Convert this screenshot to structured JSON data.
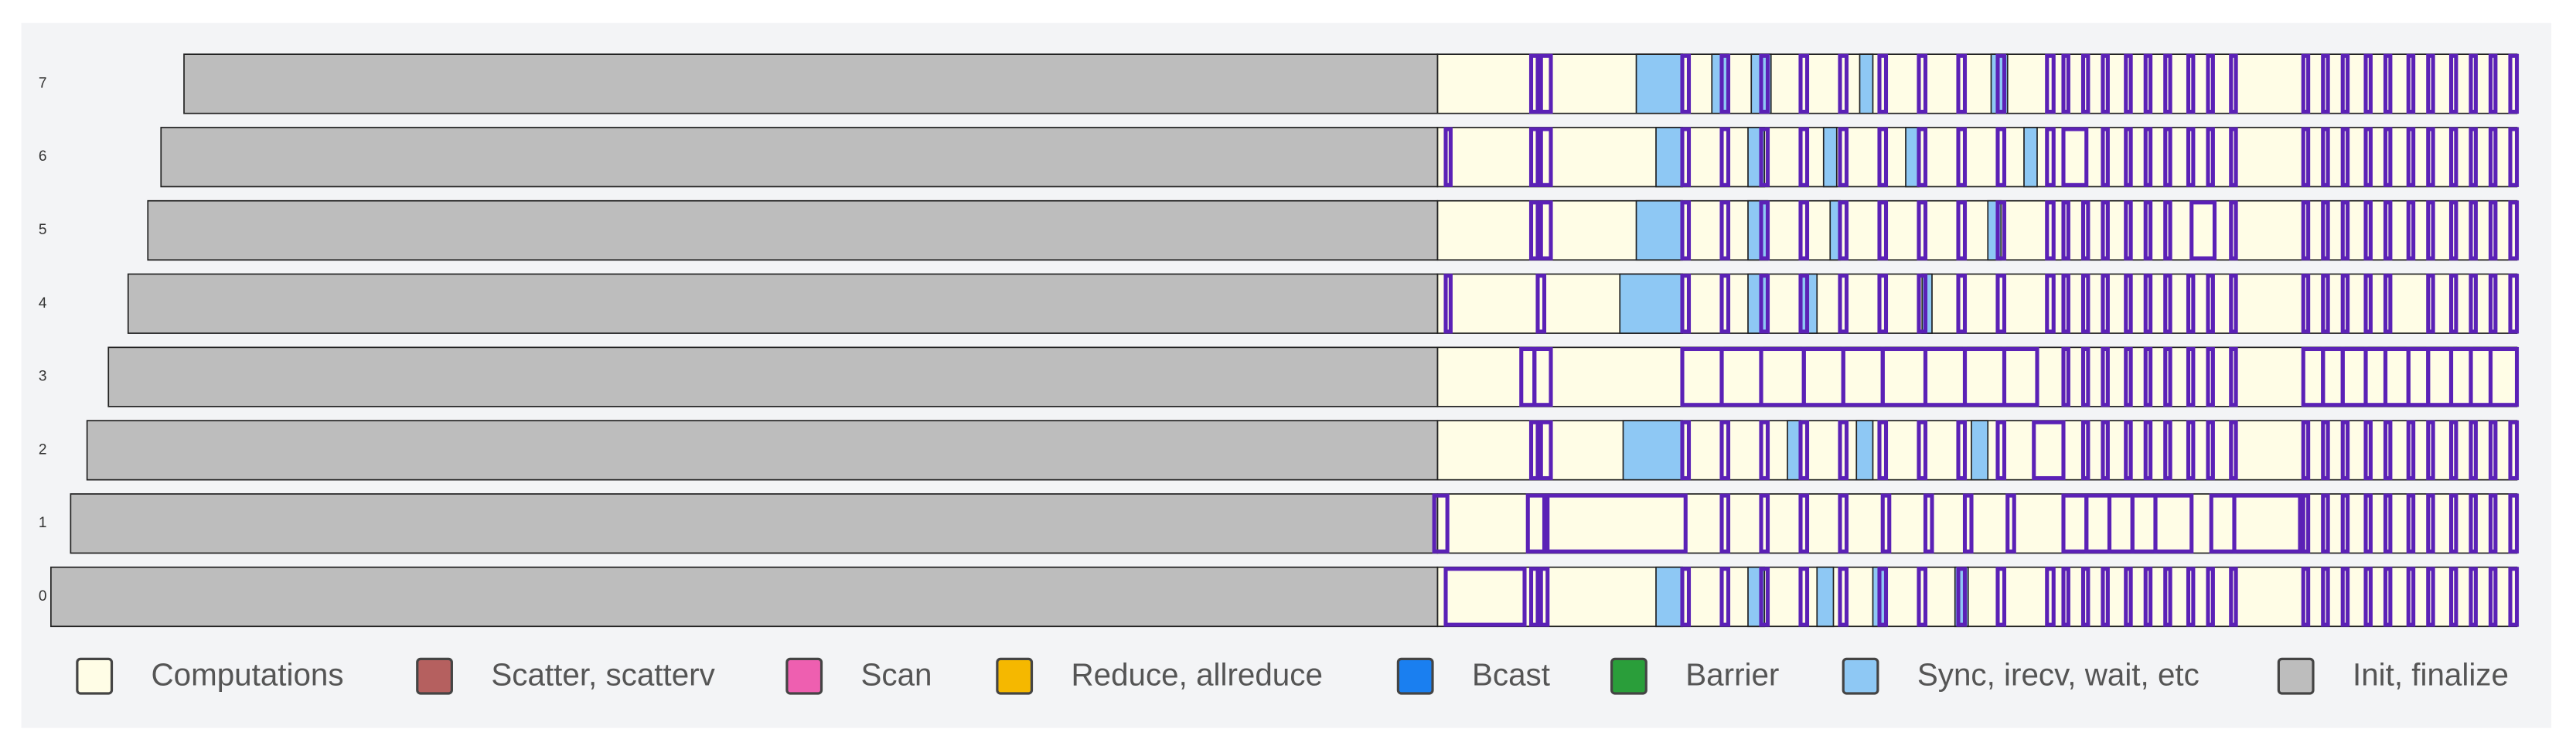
{
  "chart_data": {
    "type": "timeline",
    "rows": [
      "0",
      "1",
      "2",
      "3",
      "4",
      "5",
      "6",
      "7"
    ],
    "xlim": [
      20,
      1540
    ],
    "series": [
      {
        "name": "Computations",
        "color": "#fffde6",
        "intervals": [
          [
            0,
            875,
            1532
          ],
          [
            1,
            875,
            1532
          ],
          [
            2,
            875,
            1532
          ],
          [
            3,
            875,
            1532
          ],
          [
            4,
            875,
            1532
          ],
          [
            5,
            875,
            1532
          ],
          [
            6,
            875,
            1532
          ],
          [
            7,
            875,
            1532
          ]
        ]
      },
      {
        "name": "Scatter, scatterv",
        "color": "#b5605f",
        "intervals": []
      },
      {
        "name": "Scan",
        "color": "#ee5fb0",
        "intervals": []
      },
      {
        "name": "Reduce, allreduce",
        "color": "#f5b800",
        "intervals": []
      },
      {
        "name": "Bcast",
        "color": "#1a7ff0",
        "intervals": []
      },
      {
        "name": "Barrier",
        "color": "#2a9e3a",
        "intervals": []
      },
      {
        "name": "Sync, irecv, wait, etc",
        "color": "#8ec8f4",
        "intervals": [
          [
            7,
            996,
            1024
          ],
          [
            7,
            1042,
            1052
          ],
          [
            7,
            1066,
            1078
          ],
          [
            7,
            1132,
            1140
          ],
          [
            7,
            1212,
            1222
          ],
          [
            6,
            1008,
            1024
          ],
          [
            6,
            1064,
            1074
          ],
          [
            6,
            1110,
            1118
          ],
          [
            6,
            1160,
            1168
          ],
          [
            6,
            1232,
            1240
          ],
          [
            5,
            996,
            1024
          ],
          [
            5,
            1064,
            1076
          ],
          [
            5,
            1114,
            1120
          ],
          [
            5,
            1210,
            1218
          ],
          [
            4,
            986,
            1024
          ],
          [
            4,
            1064,
            1076
          ],
          [
            4,
            1096,
            1106
          ],
          [
            4,
            1170,
            1176
          ],
          [
            2,
            988,
            1024
          ],
          [
            2,
            1088,
            1096
          ],
          [
            2,
            1130,
            1140
          ],
          [
            2,
            1200,
            1210
          ],
          [
            0,
            1008,
            1024
          ],
          [
            0,
            1064,
            1074
          ],
          [
            0,
            1106,
            1116
          ],
          [
            0,
            1140,
            1148
          ],
          [
            0,
            1190,
            1198
          ]
        ]
      },
      {
        "name": "Init, finalize",
        "color": "#bdbdbd",
        "intervals": [
          [
            0,
            31,
            875
          ],
          [
            1,
            43,
            875
          ],
          [
            2,
            53,
            875
          ],
          [
            3,
            66,
            875
          ],
          [
            4,
            78,
            875
          ],
          [
            5,
            90,
            875
          ],
          [
            6,
            98,
            875
          ],
          [
            7,
            112,
            875
          ]
        ]
      }
    ],
    "outline_color": "#5b21b6",
    "outlined": [
      [
        7,
        932,
        936
      ],
      [
        7,
        938,
        944
      ],
      [
        7,
        1024,
        1028
      ],
      [
        7,
        1048,
        1052
      ],
      [
        7,
        1072,
        1076
      ],
      [
        7,
        1096,
        1100
      ],
      [
        7,
        1120,
        1124
      ],
      [
        7,
        1144,
        1148
      ],
      [
        7,
        1168,
        1172
      ],
      [
        7,
        1192,
        1196
      ],
      [
        7,
        1216,
        1220
      ],
      [
        7,
        1246,
        1250
      ],
      [
        7,
        1256,
        1259
      ],
      [
        7,
        1268,
        1271
      ],
      [
        7,
        1280,
        1283
      ],
      [
        7,
        1294,
        1297
      ],
      [
        7,
        1306,
        1309
      ],
      [
        7,
        1318,
        1321
      ],
      [
        7,
        1332,
        1335
      ],
      [
        7,
        1344,
        1347
      ],
      [
        7,
        1358,
        1361
      ],
      [
        7,
        1402,
        1405
      ],
      [
        7,
        1414,
        1417
      ],
      [
        7,
        1426,
        1429
      ],
      [
        7,
        1440,
        1443
      ],
      [
        7,
        1452,
        1455
      ],
      [
        7,
        1466,
        1469
      ],
      [
        7,
        1478,
        1481
      ],
      [
        7,
        1492,
        1495
      ],
      [
        7,
        1504,
        1507
      ],
      [
        7,
        1516,
        1519
      ],
      [
        7,
        1528,
        1532
      ],
      [
        6,
        880,
        883
      ],
      [
        6,
        932,
        936
      ],
      [
        6,
        938,
        944
      ],
      [
        6,
        1024,
        1028
      ],
      [
        6,
        1048,
        1052
      ],
      [
        6,
        1072,
        1076
      ],
      [
        6,
        1096,
        1100
      ],
      [
        6,
        1120,
        1124
      ],
      [
        6,
        1144,
        1148
      ],
      [
        6,
        1168,
        1172
      ],
      [
        6,
        1192,
        1196
      ],
      [
        6,
        1216,
        1220
      ],
      [
        6,
        1246,
        1250
      ],
      [
        6,
        1256,
        1270
      ],
      [
        6,
        1280,
        1283
      ],
      [
        6,
        1294,
        1297
      ],
      [
        6,
        1306,
        1309
      ],
      [
        6,
        1318,
        1321
      ],
      [
        6,
        1332,
        1335
      ],
      [
        6,
        1344,
        1347
      ],
      [
        6,
        1358,
        1361
      ],
      [
        6,
        1402,
        1405
      ],
      [
        6,
        1414,
        1417
      ],
      [
        6,
        1426,
        1429
      ],
      [
        6,
        1440,
        1443
      ],
      [
        6,
        1452,
        1455
      ],
      [
        6,
        1466,
        1469
      ],
      [
        6,
        1478,
        1481
      ],
      [
        6,
        1492,
        1495
      ],
      [
        6,
        1504,
        1507
      ],
      [
        6,
        1516,
        1519
      ],
      [
        6,
        1528,
        1532
      ],
      [
        5,
        932,
        936
      ],
      [
        5,
        938,
        944
      ],
      [
        5,
        1024,
        1028
      ],
      [
        5,
        1048,
        1052
      ],
      [
        5,
        1072,
        1076
      ],
      [
        5,
        1096,
        1100
      ],
      [
        5,
        1120,
        1124
      ],
      [
        5,
        1144,
        1148
      ],
      [
        5,
        1168,
        1172
      ],
      [
        5,
        1192,
        1196
      ],
      [
        5,
        1216,
        1220
      ],
      [
        5,
        1246,
        1250
      ],
      [
        5,
        1256,
        1259
      ],
      [
        5,
        1268,
        1271
      ],
      [
        5,
        1280,
        1283
      ],
      [
        5,
        1294,
        1297
      ],
      [
        5,
        1306,
        1309
      ],
      [
        5,
        1318,
        1321
      ],
      [
        5,
        1334,
        1348
      ],
      [
        5,
        1358,
        1361
      ],
      [
        5,
        1402,
        1405
      ],
      [
        5,
        1414,
        1417
      ],
      [
        5,
        1426,
        1429
      ],
      [
        5,
        1440,
        1443
      ],
      [
        5,
        1452,
        1455
      ],
      [
        5,
        1466,
        1469
      ],
      [
        5,
        1478,
        1481
      ],
      [
        5,
        1492,
        1495
      ],
      [
        5,
        1504,
        1507
      ],
      [
        5,
        1516,
        1519
      ],
      [
        5,
        1528,
        1532
      ],
      [
        4,
        880,
        883
      ],
      [
        4,
        936,
        940
      ],
      [
        4,
        1024,
        1028
      ],
      [
        4,
        1048,
        1052
      ],
      [
        4,
        1072,
        1076
      ],
      [
        4,
        1096,
        1100
      ],
      [
        4,
        1120,
        1124
      ],
      [
        4,
        1144,
        1148
      ],
      [
        4,
        1168,
        1172
      ],
      [
        4,
        1192,
        1196
      ],
      [
        4,
        1216,
        1220
      ],
      [
        4,
        1246,
        1250
      ],
      [
        4,
        1256,
        1259
      ],
      [
        4,
        1268,
        1271
      ],
      [
        4,
        1280,
        1283
      ],
      [
        4,
        1294,
        1297
      ],
      [
        4,
        1306,
        1309
      ],
      [
        4,
        1318,
        1321
      ],
      [
        4,
        1332,
        1335
      ],
      [
        4,
        1344,
        1347
      ],
      [
        4,
        1358,
        1361
      ],
      [
        4,
        1402,
        1405
      ],
      [
        4,
        1414,
        1417
      ],
      [
        4,
        1426,
        1429
      ],
      [
        4,
        1440,
        1443
      ],
      [
        4,
        1452,
        1455
      ],
      [
        4,
        1478,
        1481
      ],
      [
        4,
        1492,
        1495
      ],
      [
        4,
        1504,
        1507
      ],
      [
        4,
        1516,
        1519
      ],
      [
        4,
        1528,
        1532
      ],
      [
        3,
        926,
        934
      ],
      [
        3,
        934,
        944
      ],
      [
        3,
        1024,
        1048
      ],
      [
        3,
        1048,
        1072
      ],
      [
        3,
        1072,
        1098
      ],
      [
        3,
        1098,
        1122
      ],
      [
        3,
        1122,
        1146
      ],
      [
        3,
        1146,
        1172
      ],
      [
        3,
        1172,
        1196
      ],
      [
        3,
        1196,
        1220
      ],
      [
        3,
        1220,
        1240
      ],
      [
        3,
        1256,
        1259
      ],
      [
        3,
        1268,
        1271
      ],
      [
        3,
        1280,
        1283
      ],
      [
        3,
        1294,
        1297
      ],
      [
        3,
        1306,
        1309
      ],
      [
        3,
        1318,
        1321
      ],
      [
        3,
        1332,
        1335
      ],
      [
        3,
        1344,
        1347
      ],
      [
        3,
        1358,
        1361
      ],
      [
        3,
        1402,
        1414
      ],
      [
        3,
        1414,
        1426
      ],
      [
        3,
        1426,
        1440
      ],
      [
        3,
        1440,
        1452
      ],
      [
        3,
        1452,
        1466
      ],
      [
        3,
        1466,
        1478
      ],
      [
        3,
        1478,
        1492
      ],
      [
        3,
        1492,
        1504
      ],
      [
        3,
        1504,
        1516
      ],
      [
        3,
        1516,
        1532
      ],
      [
        2,
        932,
        936
      ],
      [
        2,
        938,
        944
      ],
      [
        2,
        1024,
        1028
      ],
      [
        2,
        1048,
        1052
      ],
      [
        2,
        1072,
        1076
      ],
      [
        2,
        1096,
        1100
      ],
      [
        2,
        1120,
        1124
      ],
      [
        2,
        1144,
        1148
      ],
      [
        2,
        1168,
        1172
      ],
      [
        2,
        1192,
        1196
      ],
      [
        2,
        1216,
        1220
      ],
      [
        2,
        1238,
        1256
      ],
      [
        2,
        1268,
        1271
      ],
      [
        2,
        1280,
        1283
      ],
      [
        2,
        1294,
        1297
      ],
      [
        2,
        1306,
        1309
      ],
      [
        2,
        1318,
        1321
      ],
      [
        2,
        1332,
        1335
      ],
      [
        2,
        1344,
        1347
      ],
      [
        2,
        1358,
        1361
      ],
      [
        2,
        1402,
        1405
      ],
      [
        2,
        1414,
        1417
      ],
      [
        2,
        1426,
        1429
      ],
      [
        2,
        1440,
        1443
      ],
      [
        2,
        1452,
        1455
      ],
      [
        2,
        1466,
        1469
      ],
      [
        2,
        1478,
        1481
      ],
      [
        2,
        1492,
        1495
      ],
      [
        2,
        1504,
        1507
      ],
      [
        2,
        1516,
        1519
      ],
      [
        2,
        1528,
        1532
      ],
      [
        1,
        873,
        881
      ],
      [
        1,
        930,
        940
      ],
      [
        1,
        942,
        1026
      ],
      [
        1,
        1048,
        1052
      ],
      [
        1,
        1072,
        1076
      ],
      [
        1,
        1096,
        1100
      ],
      [
        1,
        1120,
        1124
      ],
      [
        1,
        1146,
        1150
      ],
      [
        1,
        1172,
        1176
      ],
      [
        1,
        1196,
        1200
      ],
      [
        1,
        1222,
        1226
      ],
      [
        1,
        1256,
        1270
      ],
      [
        1,
        1270,
        1284
      ],
      [
        1,
        1284,
        1298
      ],
      [
        1,
        1298,
        1312
      ],
      [
        1,
        1312,
        1334
      ],
      [
        1,
        1346,
        1360
      ],
      [
        1,
        1360,
        1400
      ],
      [
        1,
        1402,
        1405
      ],
      [
        1,
        1414,
        1417
      ],
      [
        1,
        1426,
        1429
      ],
      [
        1,
        1440,
        1443
      ],
      [
        1,
        1452,
        1455
      ],
      [
        1,
        1466,
        1469
      ],
      [
        1,
        1478,
        1481
      ],
      [
        1,
        1492,
        1495
      ],
      [
        1,
        1504,
        1507
      ],
      [
        1,
        1516,
        1519
      ],
      [
        1,
        1528,
        1532
      ],
      [
        0,
        880,
        928
      ],
      [
        0,
        932,
        936
      ],
      [
        0,
        938,
        942
      ],
      [
        0,
        1024,
        1028
      ],
      [
        0,
        1048,
        1052
      ],
      [
        0,
        1072,
        1076
      ],
      [
        0,
        1096,
        1100
      ],
      [
        0,
        1120,
        1124
      ],
      [
        0,
        1144,
        1148
      ],
      [
        0,
        1168,
        1172
      ],
      [
        0,
        1192,
        1196
      ],
      [
        0,
        1216,
        1220
      ],
      [
        0,
        1246,
        1250
      ],
      [
        0,
        1256,
        1259
      ],
      [
        0,
        1268,
        1271
      ],
      [
        0,
        1280,
        1283
      ],
      [
        0,
        1294,
        1297
      ],
      [
        0,
        1306,
        1309
      ],
      [
        0,
        1318,
        1321
      ],
      [
        0,
        1332,
        1335
      ],
      [
        0,
        1344,
        1347
      ],
      [
        0,
        1358,
        1361
      ],
      [
        0,
        1402,
        1405
      ],
      [
        0,
        1414,
        1417
      ],
      [
        0,
        1426,
        1429
      ],
      [
        0,
        1440,
        1443
      ],
      [
        0,
        1452,
        1455
      ],
      [
        0,
        1466,
        1469
      ],
      [
        0,
        1478,
        1481
      ],
      [
        0,
        1492,
        1495
      ],
      [
        0,
        1504,
        1507
      ],
      [
        0,
        1516,
        1519
      ],
      [
        0,
        1528,
        1532
      ]
    ]
  }
}
